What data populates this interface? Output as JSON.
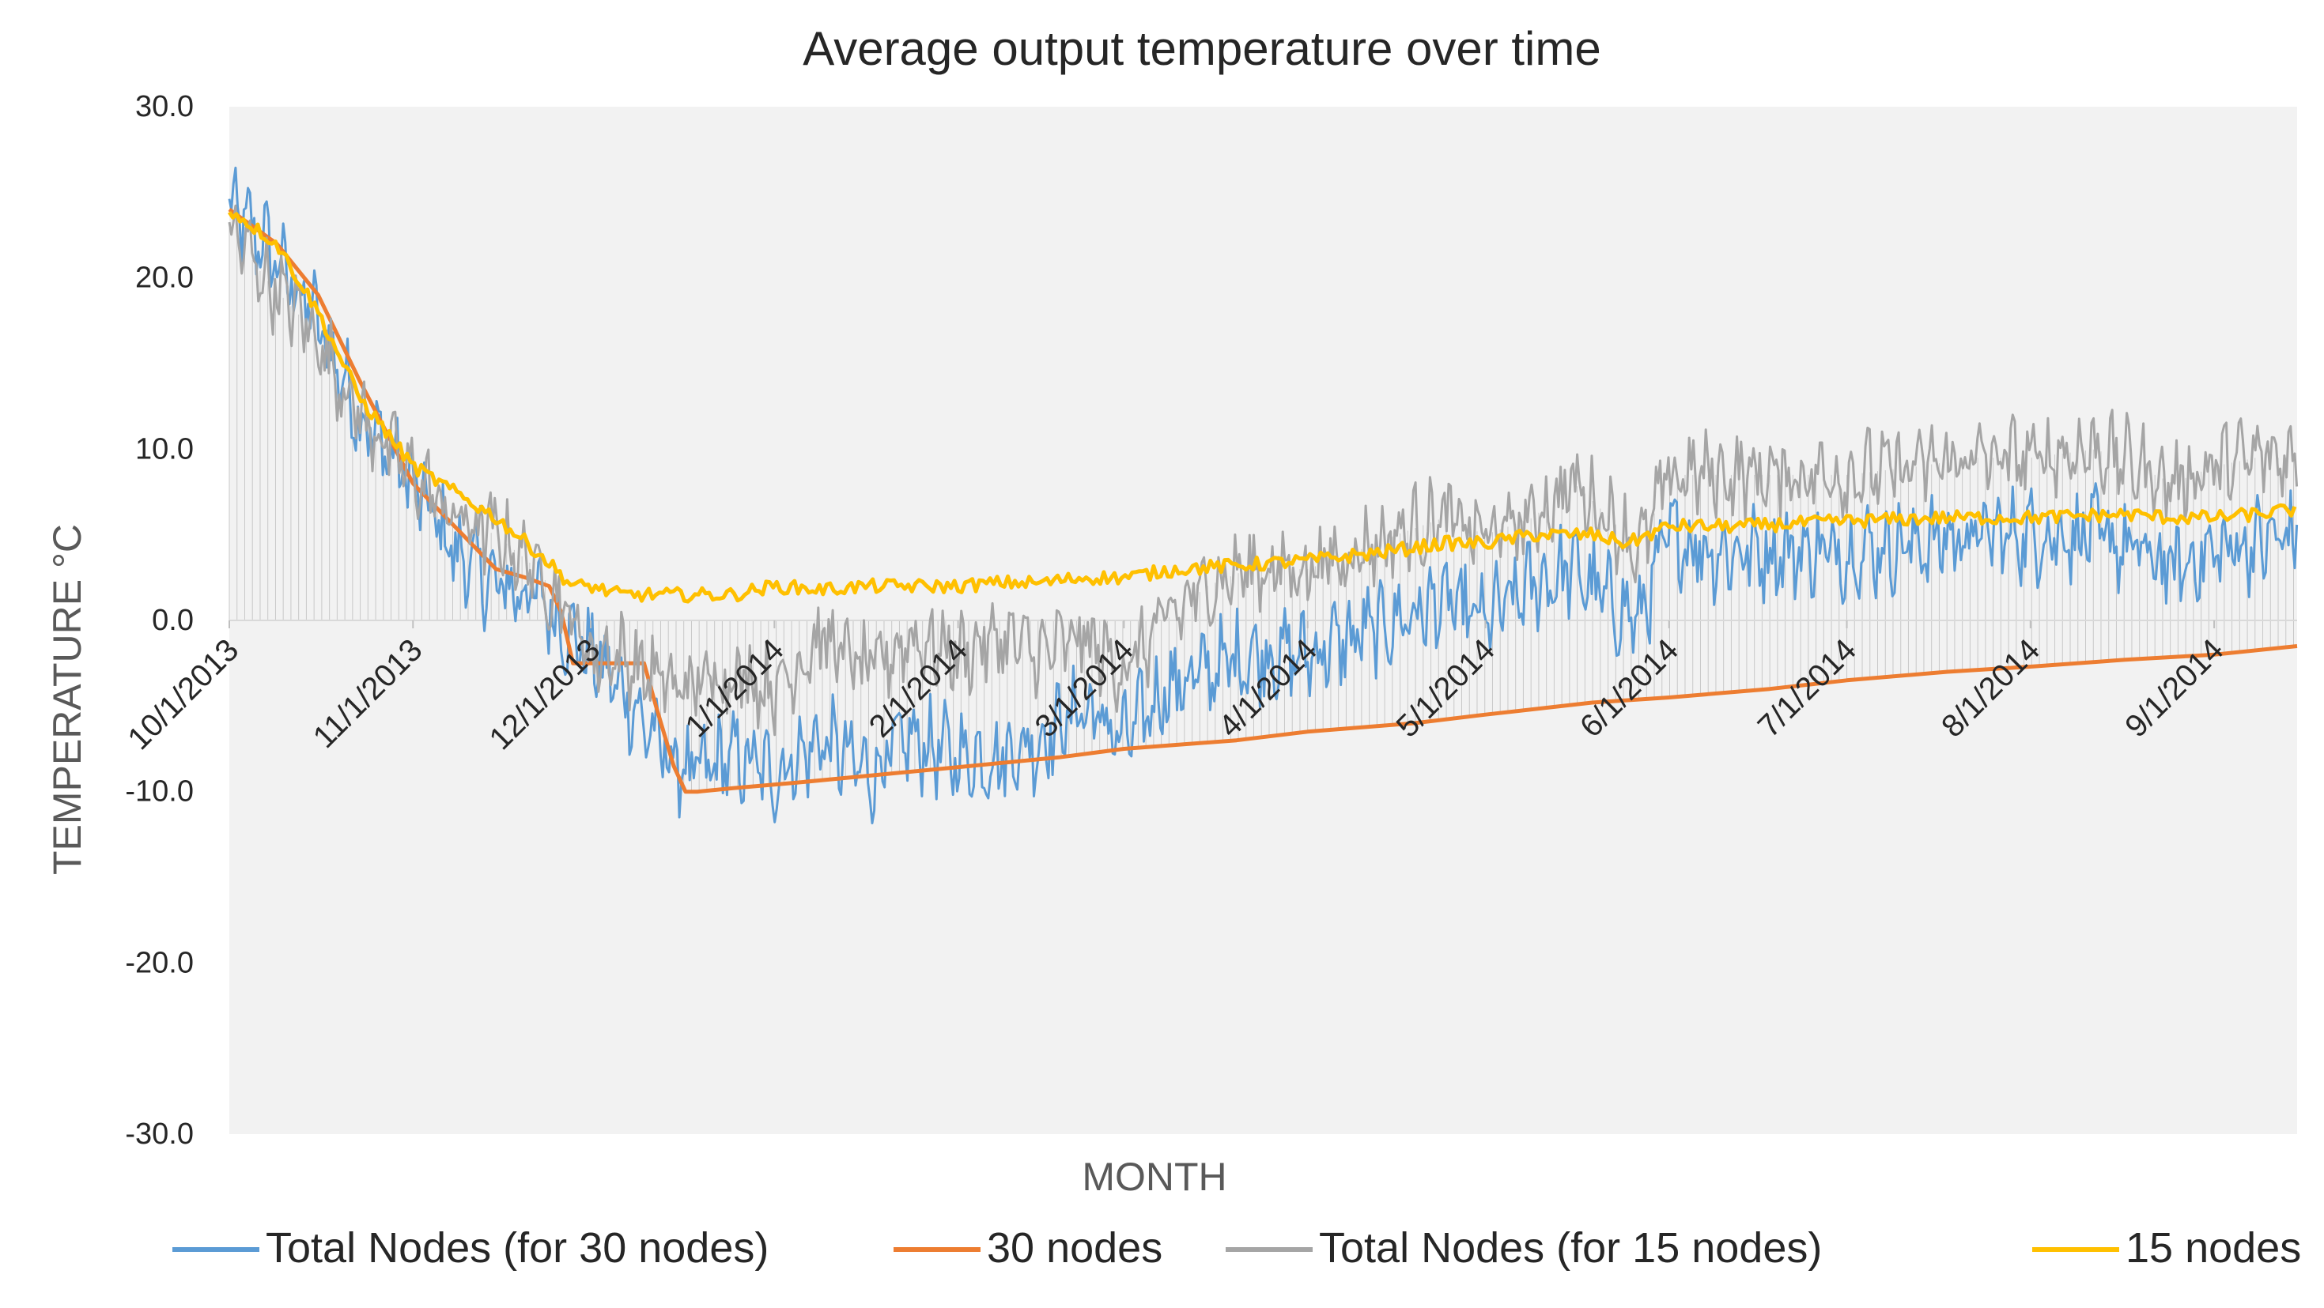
{
  "chart_data": {
    "type": "line",
    "title": "Average output temperature over time",
    "xlabel": "MONTH",
    "ylabel": "TEMPERATURE °C",
    "ylim": [
      -30,
      30
    ],
    "yticks": [
      30,
      20,
      10,
      0,
      -10,
      -20,
      -30
    ],
    "ytick_labels": [
      "30.0",
      "20.0",
      "10.0",
      "0.0",
      "-10.0",
      "-20.0",
      "-30.0"
    ],
    "x_start": "10/1/2013",
    "x_end": "9/15/2014",
    "x_total_days": 349,
    "x_ticks": [
      {
        "label": "10/1/2013",
        "day": 0
      },
      {
        "label": "11/1/2013",
        "day": 31
      },
      {
        "label": "12/1/2013",
        "day": 61
      },
      {
        "label": "1/1/2014",
        "day": 92
      },
      {
        "label": "2/1/2014",
        "day": 123
      },
      {
        "label": "3/1/2014",
        "day": 151
      },
      {
        "label": "4/1/2014",
        "day": 182
      },
      {
        "label": "5/1/2014",
        "day": 212
      },
      {
        "label": "6/1/2014",
        "day": 243
      },
      {
        "label": "7/1/2014",
        "day": 273
      },
      {
        "label": "8/1/2014",
        "day": 304
      },
      {
        "label": "9/1/2014",
        "day": 335
      }
    ],
    "legend_position": "bottom",
    "series": [
      {
        "name": "Total Nodes (for 30 nodes)",
        "color": "#5b9bd5",
        "style": "dense-noisy",
        "amplitude": 2.0,
        "x": [
          0,
          6,
          14,
          22,
          31,
          38,
          45,
          52,
          58,
          61,
          66,
          70,
          74,
          78,
          85,
          92,
          100,
          108,
          115,
          123,
          130,
          137,
          144,
          151,
          158,
          165,
          172,
          182,
          190,
          197,
          205,
          212,
          220,
          227,
          233,
          238,
          243,
          250,
          260,
          273,
          285,
          295,
          304,
          315,
          322,
          328,
          335,
          342,
          349
        ],
        "y": [
          24,
          22,
          18,
          12,
          8,
          4,
          2,
          1.5,
          -1,
          -2,
          -4,
          -6,
          -8,
          -9,
          -8,
          -9,
          -7,
          -9,
          -7,
          -8,
          -8,
          -7,
          -5,
          -7,
          -4,
          -3,
          -2,
          -2,
          -1,
          0,
          1,
          0,
          2,
          3,
          1,
          0,
          5,
          4,
          4,
          4,
          4.5,
          5,
          5,
          5,
          4,
          3,
          4,
          4.5,
          5
        ]
      },
      {
        "name": "30 nodes",
        "color": "#ed7d31",
        "style": "smooth",
        "amplitude": 0,
        "x": [
          0,
          8,
          15,
          22,
          31,
          38,
          45,
          50,
          54,
          56,
          58,
          61,
          66,
          70,
          72,
          75,
          77,
          79,
          85,
          95,
          110,
          125,
          140,
          151,
          170,
          182,
          200,
          212,
          230,
          243,
          260,
          273,
          290,
          304,
          320,
          335,
          349
        ],
        "y": [
          24,
          22,
          19,
          14,
          8,
          5.5,
          3,
          2.5,
          2,
          0.5,
          -2.5,
          -2.5,
          -2.5,
          -2.5,
          -5,
          -8.5,
          -10,
          -10,
          -9.8,
          -9.5,
          -9,
          -8.5,
          -8,
          -7.5,
          -7,
          -6.5,
          -6,
          -5.5,
          -4.8,
          -4.5,
          -4,
          -3.5,
          -3,
          -2.7,
          -2.3,
          -2,
          -1.5
        ]
      },
      {
        "name": "Total Nodes (for 15 nodes)",
        "color": "#a5a5a5",
        "style": "dense-noisy",
        "amplitude": 1.8,
        "x": [
          0,
          6,
          14,
          22,
          31,
          38,
          45,
          52,
          58,
          61,
          66,
          70,
          76,
          85,
          92,
          100,
          108,
          115,
          123,
          130,
          137,
          144,
          151,
          158,
          165,
          172,
          182,
          190,
          197,
          205,
          212,
          220,
          227,
          233,
          238,
          243,
          250,
          260,
          273,
          285,
          295,
          304,
          315,
          322,
          328,
          335,
          342,
          349
        ],
        "y": [
          23,
          20,
          17,
          12,
          8.5,
          6,
          5,
          3,
          0,
          -2,
          -2,
          -3,
          -4,
          -3,
          -4,
          -1,
          -3,
          -1,
          -2,
          -1,
          -2,
          -1,
          -3,
          0,
          2,
          3,
          3,
          4,
          5,
          6,
          5,
          6,
          8,
          6,
          4,
          8.5,
          8.5,
          8.5,
          8.5,
          9,
          9.5,
          9.5,
          10,
          9,
          8,
          9,
          9.5,
          9.5
        ]
      },
      {
        "name": "15 nodes",
        "color": "#ffc000",
        "style": "smooth",
        "amplitude": 0.4,
        "x": [
          0,
          8,
          15,
          22,
          31,
          38,
          45,
          52,
          58,
          61,
          66,
          70,
          76,
          85,
          92,
          100,
          108,
          115,
          123,
          130,
          137,
          144,
          151,
          160,
          170,
          182,
          195,
          205,
          212,
          220,
          230,
          236,
          243,
          255,
          273,
          290,
          304,
          320,
          328,
          335,
          342,
          349
        ],
        "y": [
          24,
          22,
          18,
          13,
          9,
          7.5,
          6,
          4,
          2,
          2,
          1.5,
          1.5,
          1.5,
          1.5,
          2,
          1.8,
          2,
          2,
          2,
          2.2,
          2.2,
          2.5,
          2.5,
          3,
          3.2,
          3.5,
          4,
          4.5,
          4.5,
          5,
          5,
          4.5,
          5.5,
          5.5,
          5.8,
          6,
          6,
          6.2,
          6,
          6,
          6.2,
          6.5
        ]
      }
    ]
  }
}
